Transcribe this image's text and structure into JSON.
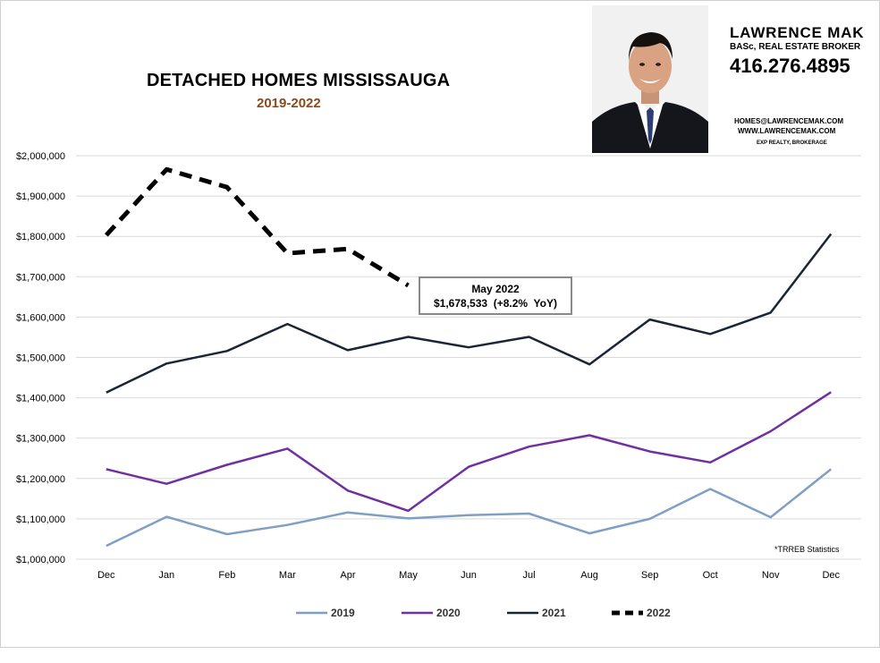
{
  "header": {
    "title": "DETACHED HOMES MISSISSAUGA",
    "subtitle": "2019-2022"
  },
  "agent": {
    "photo_icon": "agent-portrait-photo",
    "name": "LAWRENCE MAK",
    "role": "BASc, REAL ESTATE BROKER",
    "phone": "416.276.4895",
    "email": "HOMES@LAWRENCEMAK.COM",
    "website": "WWW.LAWRENCEMAK.COM",
    "brokerage": "EXP REALTY, BROKERAGE"
  },
  "annotation": {
    "line1": "May 2022",
    "line2": "$1,678,533  (+8.2%  YoY)"
  },
  "source_note": "*TRREB Statistics",
  "colors": {
    "s2019": "#7f9fc4",
    "s2020": "#7030a0",
    "s2021": "#1a2535",
    "s2022": "#000000",
    "subtitle": "#8a4a1c",
    "grid": "#d9d9d9"
  },
  "chart_data": {
    "type": "line",
    "title": "DETACHED HOMES MISSISSAUGA",
    "subtitle": "2019-2022",
    "xlabel": "",
    "ylabel": "",
    "categories": [
      "Dec",
      "Jan",
      "Feb",
      "Mar",
      "Apr",
      "May",
      "Jun",
      "Jul",
      "Aug",
      "Sep",
      "Oct",
      "Nov",
      "Dec"
    ],
    "ylim": [
      1000000,
      2000000
    ],
    "yticks": [
      1000000,
      1100000,
      1200000,
      1300000,
      1400000,
      1500000,
      1600000,
      1700000,
      1800000,
      1900000,
      2000000
    ],
    "ytick_labels": [
      "$1,000,000",
      "$1,100,000",
      "$1,200,000",
      "$1,300,000",
      "$1,400,000",
      "$1,500,000",
      "$1,600,000",
      "$1,700,000",
      "$1,800,000",
      "$1,900,000",
      "$2,000,000"
    ],
    "grid": true,
    "legend_position": "bottom",
    "series": [
      {
        "name": "2019",
        "style": "solid",
        "values": [
          1033000,
          1105000,
          1062000,
          1085000,
          1116000,
          1101000,
          1109000,
          1113000,
          1064000,
          1100000,
          1174000,
          1104000,
          1223000
        ]
      },
      {
        "name": "2020",
        "style": "solid",
        "values": [
          1223000,
          1187000,
          1234000,
          1274000,
          1170000,
          1120000,
          1229000,
          1279000,
          1307000,
          1267000,
          1240000,
          1317000,
          1414000
        ]
      },
      {
        "name": "2021",
        "style": "solid",
        "values": [
          1413000,
          1485000,
          1516000,
          1583000,
          1518000,
          1551000,
          1525000,
          1551000,
          1483000,
          1594000,
          1558000,
          1611000,
          1806000
        ]
      },
      {
        "name": "2022",
        "style": "dashed",
        "values": [
          1803000,
          1966000,
          1922000,
          1758000,
          1769000,
          1678533,
          null,
          null,
          null,
          null,
          null,
          null,
          null
        ]
      }
    ]
  }
}
